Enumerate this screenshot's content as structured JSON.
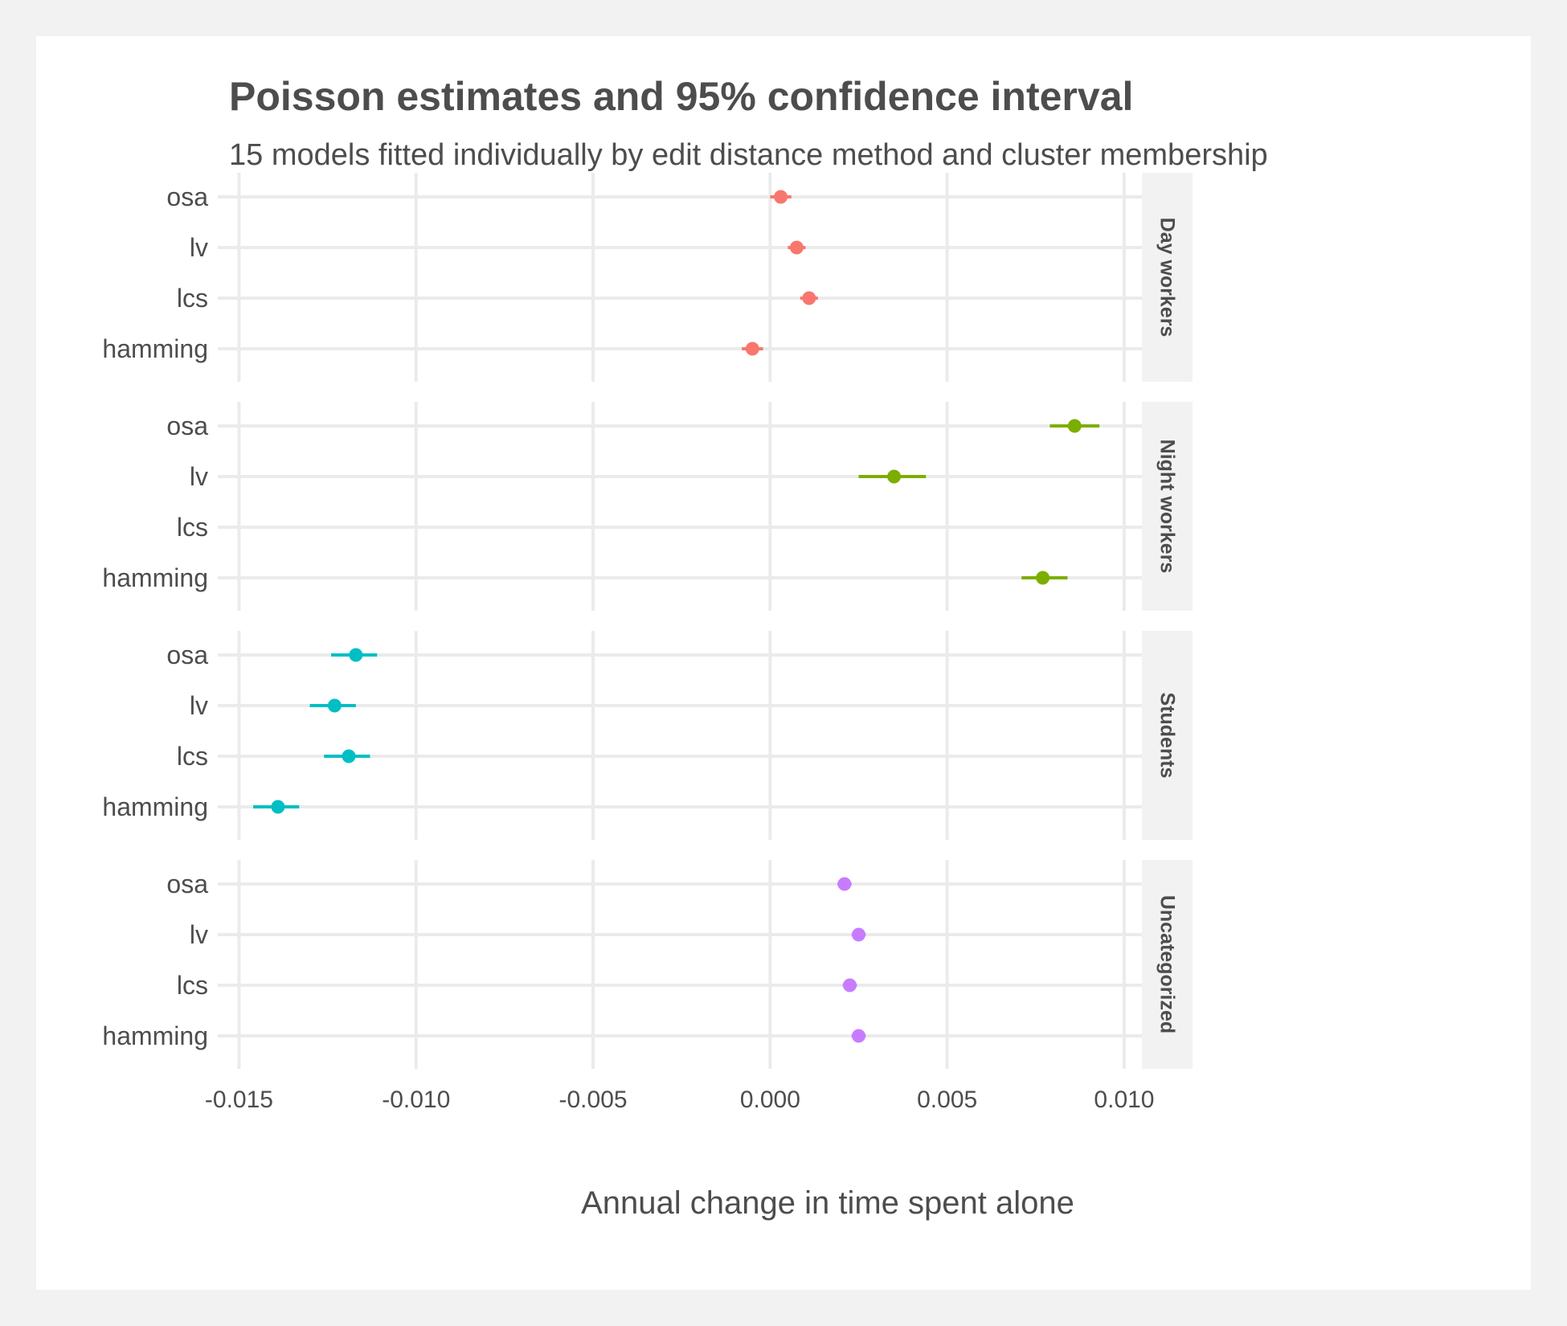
{
  "chart_data": {
    "type": "scatter",
    "title": "Poisson estimates and 95% confidence interval",
    "subtitle": "15 models fitted individually by edit distance method and cluster membership",
    "xlabel": "Annual change in time spent alone",
    "ylabel": "",
    "xlim": [
      -0.0156,
      0.0105
    ],
    "x_ticks": [
      -0.015,
      -0.01,
      -0.005,
      0.0,
      0.005,
      0.01
    ],
    "x_tick_labels": [
      "-0.015",
      "-0.010",
      "-0.005",
      "0.000",
      "0.005",
      "0.010"
    ],
    "categories": [
      "osa",
      "lv",
      "lcs",
      "hamming"
    ],
    "grid": true,
    "legend": "none",
    "facets": [
      {
        "name": "Day workers",
        "color": "#F8766D",
        "points": [
          {
            "method": "osa",
            "estimate": 0.0003,
            "ci_low": 0.0,
            "ci_high": 0.0006
          },
          {
            "method": "lv",
            "estimate": 0.00075,
            "ci_low": 0.0005,
            "ci_high": 0.001
          },
          {
            "method": "lcs",
            "estimate": 0.0011,
            "ci_low": 0.00085,
            "ci_high": 0.00135
          },
          {
            "method": "hamming",
            "estimate": -0.0005,
            "ci_low": -0.0008,
            "ci_high": -0.0002
          }
        ]
      },
      {
        "name": "Night workers",
        "color": "#7CAE00",
        "points": [
          {
            "method": "osa",
            "estimate": 0.0086,
            "ci_low": 0.0079,
            "ci_high": 0.0093
          },
          {
            "method": "lv",
            "estimate": 0.0035,
            "ci_low": 0.0025,
            "ci_high": 0.0044
          },
          {
            "method": "hamming",
            "estimate": 0.0077,
            "ci_low": 0.0071,
            "ci_high": 0.0084
          }
        ]
      },
      {
        "name": "Students",
        "color": "#00BFC4",
        "points": [
          {
            "method": "osa",
            "estimate": -0.0117,
            "ci_low": -0.0124,
            "ci_high": -0.0111
          },
          {
            "method": "lv",
            "estimate": -0.0123,
            "ci_low": -0.013,
            "ci_high": -0.0117
          },
          {
            "method": "lcs",
            "estimate": -0.0119,
            "ci_low": -0.0126,
            "ci_high": -0.0113
          },
          {
            "method": "hamming",
            "estimate": -0.0139,
            "ci_low": -0.0146,
            "ci_high": -0.0133
          }
        ]
      },
      {
        "name": "Uncategorized",
        "color": "#C77CFF",
        "points": [
          {
            "method": "osa",
            "estimate": 0.0021,
            "ci_low": 0.0019,
            "ci_high": 0.0023
          },
          {
            "method": "lv",
            "estimate": 0.0025,
            "ci_low": 0.0023,
            "ci_high": 0.0027
          },
          {
            "method": "lcs",
            "estimate": 0.00225,
            "ci_low": 0.00205,
            "ci_high": 0.00245
          },
          {
            "method": "hamming",
            "estimate": 0.0025,
            "ci_low": 0.0023,
            "ci_high": 0.0027
          }
        ]
      }
    ]
  }
}
